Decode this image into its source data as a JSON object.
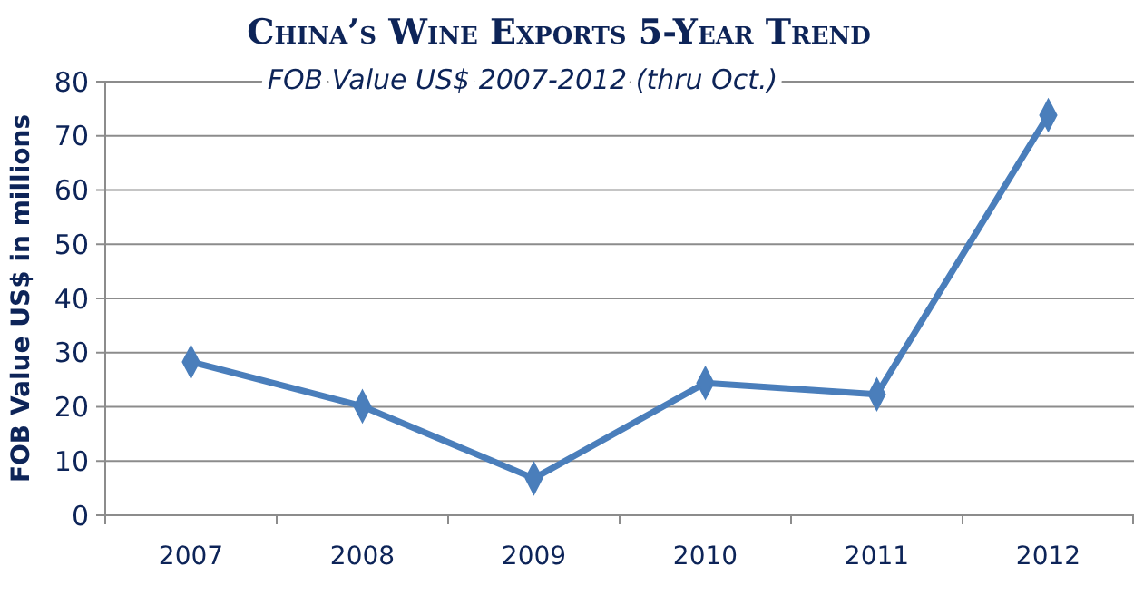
{
  "chart_data": {
    "type": "line",
    "title": "China’s Wine Exports 5-Year Trend",
    "subtitle": "FOB Value US$ 2007-2012 (thru Oct.)",
    "ylabel": "FOB Value US$ in millions",
    "categories": [
      "2007",
      "2008",
      "2009",
      "2010",
      "2011",
      "2012"
    ],
    "series": [
      {
        "color": "#4a7ebb",
        "values": [
          28.3,
          20.1,
          6.8,
          24.4,
          22.3,
          73.8
        ]
      }
    ],
    "ylim": [
      0,
      80
    ],
    "yticks": [
      0,
      10,
      20,
      30,
      40,
      50,
      60,
      70,
      80
    ],
    "grid": "y",
    "marker": "diamond",
    "line_style": "solid"
  }
}
